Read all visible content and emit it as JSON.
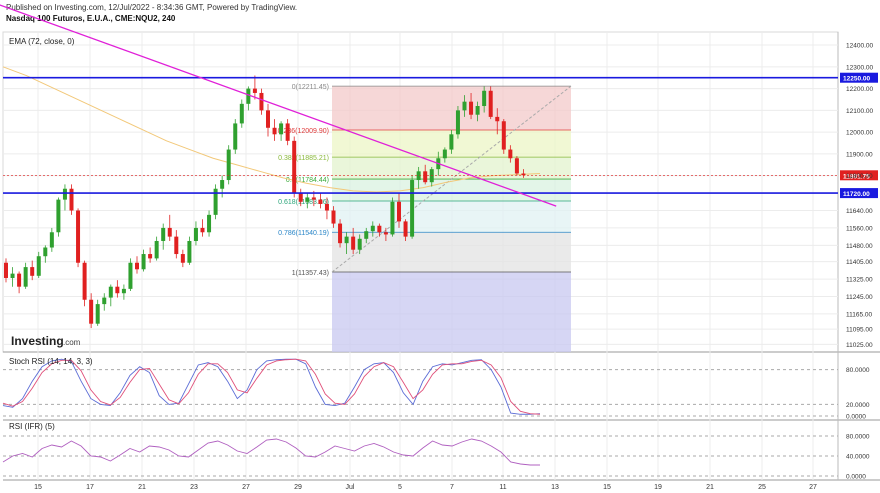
{
  "header": {
    "published": "Published on Investing.com, 12/Jul/2022 - 8:34:36 GMT, Powered by TradingView.",
    "title": "Nasdaq 100 Futuros, E.U.A., CME:NQU2, 240"
  },
  "main_panel": {
    "ema_label": "EMA (72, close, 0)",
    "logo_text": "Investing",
    "logo_suffix": ".com"
  },
  "stoch_panel": {
    "label": "Stoch RSI (14, 14, 3, 3)"
  },
  "rsi_panel": {
    "label": "RSI (IFR) (5)"
  },
  "colors": {
    "up": "#2fa02f",
    "down": "#e02020",
    "trend": "#e020d8",
    "hline": "#1a1adf",
    "ema": "#f2c879",
    "k": "#5b6cd6",
    "d": "#e0507a"
  },
  "chart_data": [
    {
      "type": "candlestick",
      "price_axis_ticks": [
        12400,
        12300,
        12200,
        12100,
        12000,
        11900,
        11800,
        11720,
        11640,
        11560,
        11480,
        11405,
        11325,
        11245,
        11165,
        11095,
        11025
      ],
      "price_axis_labels": [
        "12400.00",
        "12300.00",
        "12200.00",
        "12100.00",
        "12000.00",
        "11900.00",
        "11800.00",
        "11720.00",
        "11640.00",
        "11560.00",
        "11480.00",
        "11405.00",
        "11325.00",
        "11245.00",
        "11165.00",
        "11095.00",
        "11025.00"
      ],
      "x_tick_labels": [
        "15",
        "17",
        "21",
        "23",
        "27",
        "29",
        "Jul",
        "5",
        "7",
        "11",
        "13",
        "15",
        "19",
        "21",
        "25",
        "27"
      ],
      "horizontal_lines": [
        {
          "value": 12250,
          "label": "12250.00"
        },
        {
          "value": 11720,
          "label": "11720.00"
        }
      ],
      "last_price": {
        "value": 11801.75,
        "label": "11801.75"
      },
      "fibonacci": [
        {
          "ratio": "0",
          "value": 12211.45,
          "label": "0(12211.45)",
          "color": "#888888",
          "fill": "#f3c9c9"
        },
        {
          "ratio": "0.236",
          "value": 12009.9,
          "label": "0.236(12009.90)",
          "color": "#e03c3c",
          "fill": "#ecf5c5"
        },
        {
          "ratio": "0.382",
          "value": 11885.21,
          "label": "0.382(11885.21)",
          "color": "#88b83a",
          "fill": "#e3f3cd"
        },
        {
          "ratio": "0.5",
          "value": 11784.44,
          "label": "0.5(11784.44)",
          "color": "#3cab3c",
          "fill": "#d9f2e0"
        },
        {
          "ratio": "0.618",
          "value": 11683.66,
          "label": "0.618(11683.66)",
          "color": "#2aa57a",
          "fill": "#e0f1f3"
        },
        {
          "ratio": "0.786",
          "value": 11540.19,
          "label": "0.786(11540.19)",
          "color": "#2a86c8",
          "fill": "#e3e3e3"
        },
        {
          "ratio": "1",
          "value": 11357.43,
          "label": "1(11357.43)",
          "color": "#555555",
          "fill": "#c8c8f0"
        }
      ],
      "candles": [
        [
          11400,
          11420,
          11310,
          11330
        ],
        [
          11330,
          11380,
          11290,
          11350
        ],
        [
          11350,
          11360,
          11260,
          11290
        ],
        [
          11290,
          11400,
          11280,
          11380
        ],
        [
          11380,
          11410,
          11320,
          11340
        ],
        [
          11340,
          11450,
          11330,
          11430
        ],
        [
          11430,
          11480,
          11400,
          11470
        ],
        [
          11470,
          11560,
          11450,
          11540
        ],
        [
          11540,
          11700,
          11520,
          11690
        ],
        [
          11690,
          11760,
          11640,
          11740
        ],
        [
          11740,
          11760,
          11620,
          11640
        ],
        [
          11640,
          11650,
          11380,
          11400
        ],
        [
          11400,
          11410,
          11200,
          11230
        ],
        [
          11230,
          11260,
          11100,
          11120
        ],
        [
          11120,
          11230,
          11110,
          11210
        ],
        [
          11210,
          11260,
          11180,
          11240
        ],
        [
          11240,
          11300,
          11200,
          11290
        ],
        [
          11290,
          11320,
          11240,
          11260
        ],
        [
          11260,
          11300,
          11230,
          11280
        ],
        [
          11280,
          11420,
          11270,
          11400
        ],
        [
          11400,
          11430,
          11350,
          11370
        ],
        [
          11370,
          11460,
          11360,
          11440
        ],
        [
          11440,
          11470,
          11400,
          11420
        ],
        [
          11420,
          11520,
          11410,
          11500
        ],
        [
          11500,
          11580,
          11460,
          11560
        ],
        [
          11560,
          11620,
          11500,
          11520
        ],
        [
          11520,
          11550,
          11420,
          11440
        ],
        [
          11440,
          11460,
          11380,
          11400
        ],
        [
          11400,
          11520,
          11390,
          11500
        ],
        [
          11500,
          11590,
          11480,
          11560
        ],
        [
          11560,
          11600,
          11520,
          11540
        ],
        [
          11540,
          11640,
          11520,
          11620
        ],
        [
          11620,
          11760,
          11600,
          11740
        ],
        [
          11740,
          11800,
          11700,
          11780
        ],
        [
          11780,
          11940,
          11760,
          11920
        ],
        [
          11920,
          12060,
          11900,
          12040
        ],
        [
          12040,
          12150,
          12020,
          12130
        ],
        [
          12130,
          12210,
          12100,
          12200
        ],
        [
          12200,
          12260,
          12150,
          12180
        ],
        [
          12180,
          12200,
          12080,
          12100
        ],
        [
          12100,
          12130,
          11980,
          12020
        ],
        [
          12020,
          12060,
          11960,
          11990
        ],
        [
          11990,
          12050,
          11960,
          12040
        ],
        [
          12040,
          12060,
          11940,
          11960
        ],
        [
          11960,
          11980,
          11700,
          11720
        ],
        [
          11720,
          11740,
          11660,
          11680
        ],
        [
          11680,
          11720,
          11650,
          11700
        ],
        [
          11700,
          11730,
          11660,
          11690
        ],
        [
          11690,
          11720,
          11650,
          11670
        ],
        [
          11670,
          11700,
          11600,
          11640
        ],
        [
          11640,
          11660,
          11560,
          11580
        ],
        [
          11580,
          11600,
          11470,
          11490
        ],
        [
          11490,
          11540,
          11440,
          11520
        ],
        [
          11520,
          11560,
          11440,
          11460
        ],
        [
          11460,
          11530,
          11440,
          11510
        ],
        [
          11510,
          11560,
          11490,
          11545
        ],
        [
          11545,
          11590,
          11520,
          11570
        ],
        [
          11570,
          11580,
          11520,
          11540
        ],
        [
          11540,
          11560,
          11500,
          11530
        ],
        [
          11530,
          11700,
          11520,
          11680
        ],
        [
          11680,
          11720,
          11560,
          11590
        ],
        [
          11590,
          11600,
          11500,
          11520
        ],
        [
          11520,
          11800,
          11510,
          11780
        ],
        [
          11780,
          11840,
          11740,
          11820
        ],
        [
          11820,
          11850,
          11760,
          11770
        ],
        [
          11770,
          11840,
          11750,
          11830
        ],
        [
          11830,
          11910,
          11800,
          11880
        ],
        [
          11880,
          11930,
          11860,
          11920
        ],
        [
          11920,
          12010,
          11900,
          11990
        ],
        [
          11990,
          12120,
          11970,
          12100
        ],
        [
          12100,
          12170,
          12070,
          12140
        ],
        [
          12140,
          12180,
          12060,
          12080
        ],
        [
          12080,
          12140,
          12050,
          12120
        ],
        [
          12120,
          12210,
          12090,
          12190
        ],
        [
          12190,
          12210,
          12060,
          12070
        ],
        [
          12070,
          12110,
          11990,
          12050
        ],
        [
          12050,
          12060,
          11900,
          11920
        ],
        [
          11920,
          11940,
          11860,
          11880
        ],
        [
          11880,
          11890,
          11800,
          11810
        ],
        [
          11810,
          11830,
          11790,
          11802
        ]
      ],
      "ema": [
        12300,
        12260,
        12210,
        12160,
        12110,
        12060,
        12010,
        11960,
        11920,
        11880,
        11850,
        11820,
        11790,
        11765,
        11745,
        11730,
        11725,
        11730,
        11745,
        11770,
        11790,
        11800,
        11805,
        11810
      ],
      "trend_line": {
        "from_index": -1.5,
        "from_value": 12590,
        "to_index": 84,
        "to_value": 11660
      },
      "stoch_rsi": {
        "axis_labels": [
          "80.0000",
          "20.0000",
          "0.0000"
        ],
        "k": [
          18,
          15,
          30,
          60,
          85,
          95,
          98,
          94,
          60,
          30,
          20,
          18,
          40,
          70,
          85,
          75,
          35,
          20,
          22,
          55,
          88,
          92,
          85,
          60,
          30,
          45,
          80,
          95,
          97,
          98,
          98,
          90,
          50,
          20,
          18,
          22,
          50,
          80,
          90,
          92,
          75,
          40,
          20,
          60,
          85,
          90,
          88,
          92,
          96,
          97,
          80,
          50,
          5,
          3,
          3,
          4
        ],
        "d": [
          22,
          17,
          25,
          48,
          75,
          90,
          96,
          96,
          78,
          45,
          25,
          19,
          32,
          58,
          80,
          82,
          55,
          28,
          21,
          40,
          72,
          90,
          90,
          75,
          45,
          40,
          65,
          88,
          95,
          97,
          98,
          95,
          72,
          38,
          22,
          20,
          38,
          68,
          85,
          92,
          85,
          58,
          30,
          45,
          72,
          88,
          90,
          90,
          94,
          96,
          88,
          66,
          25,
          8,
          4,
          3
        ]
      },
      "rsi": {
        "axis_labels": [
          "80.0000",
          "40.0000",
          "0.0000"
        ],
        "values": [
          28,
          40,
          45,
          38,
          55,
          62,
          58,
          70,
          60,
          40,
          38,
          30,
          42,
          55,
          48,
          60,
          58,
          52,
          40,
          38,
          52,
          66,
          70,
          62,
          50,
          45,
          58,
          72,
          74,
          68,
          56,
          40,
          38,
          48,
          60,
          55,
          50,
          60,
          65,
          58,
          48,
          42,
          40,
          56,
          70,
          62,
          60,
          68,
          74,
          70,
          60,
          48,
          28,
          24,
          22,
          22
        ]
      }
    }
  ]
}
